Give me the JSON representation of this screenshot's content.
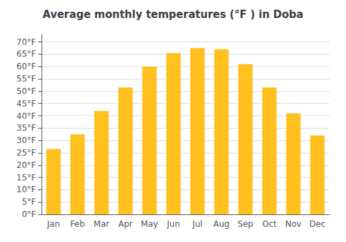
{
  "chart_data": {
    "type": "bar",
    "title": "Average monthly temperatures (°F ) in Doba",
    "categories": [
      "Jan",
      "Feb",
      "Mar",
      "Apr",
      "May",
      "Jun",
      "Jul",
      "Aug",
      "Sep",
      "Oct",
      "Nov",
      "Dec"
    ],
    "values": [
      26.5,
      32.5,
      42.0,
      51.5,
      60.0,
      65.5,
      67.5,
      67.0,
      61.0,
      51.5,
      41.0,
      32.0
    ],
    "color": "#FFC020",
    "ylim": [
      0,
      73
    ],
    "yticks": [
      {
        "value": 0,
        "label": "0°F"
      },
      {
        "value": 5,
        "label": "5°F"
      },
      {
        "value": 10,
        "label": "10°F"
      },
      {
        "value": 15,
        "label": "15°F"
      },
      {
        "value": 20,
        "label": "20°F"
      },
      {
        "value": 25,
        "label": "25°F"
      },
      {
        "value": 30,
        "label": "30°F"
      },
      {
        "value": 35,
        "label": "35°F"
      },
      {
        "value": 40,
        "label": "40°F"
      },
      {
        "value": 45,
        "label": "45°F"
      },
      {
        "value": 50,
        "label": "50°F"
      },
      {
        "value": 55,
        "label": "55°F"
      },
      {
        "value": 60,
        "label": "60°F"
      },
      {
        "value": 65,
        "label": "65°F"
      },
      {
        "value": 70,
        "label": "70°F"
      }
    ],
    "grid": true
  }
}
